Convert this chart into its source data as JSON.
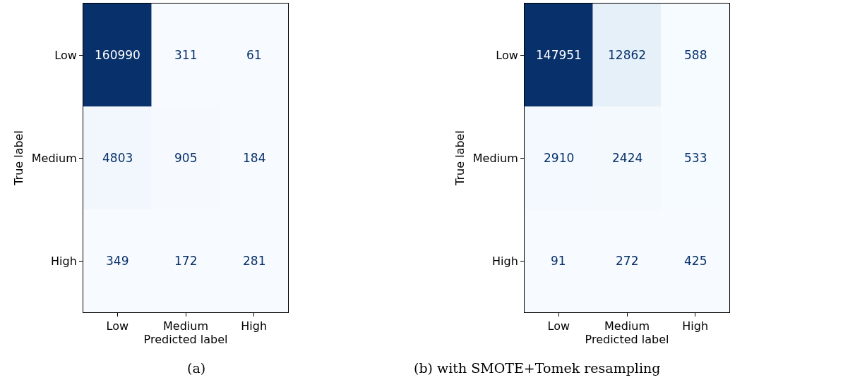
{
  "chart_data": [
    {
      "type": "heatmap",
      "title": "(a)",
      "xlabel": "Predicted label",
      "ylabel": "True label",
      "categories": [
        "Low",
        "Medium",
        "High"
      ],
      "y_categories": [
        "Low",
        "Medium",
        "High"
      ],
      "cells": [
        [
          160990,
          311,
          61
        ],
        [
          4803,
          905,
          184
        ],
        [
          349,
          172,
          281
        ]
      ],
      "data_labels": true
    },
    {
      "type": "heatmap",
      "title": "(b) with SMOTE+Tomek resampling",
      "xlabel": "Predicted label",
      "ylabel": "True label",
      "categories": [
        "Low",
        "Medium",
        "High"
      ],
      "y_categories": [
        "Low",
        "Medium",
        "High"
      ],
      "cells": [
        [
          147951,
          12862,
          588
        ],
        [
          2910,
          2424,
          533
        ],
        [
          91,
          272,
          425
        ]
      ],
      "data_labels": true
    }
  ]
}
